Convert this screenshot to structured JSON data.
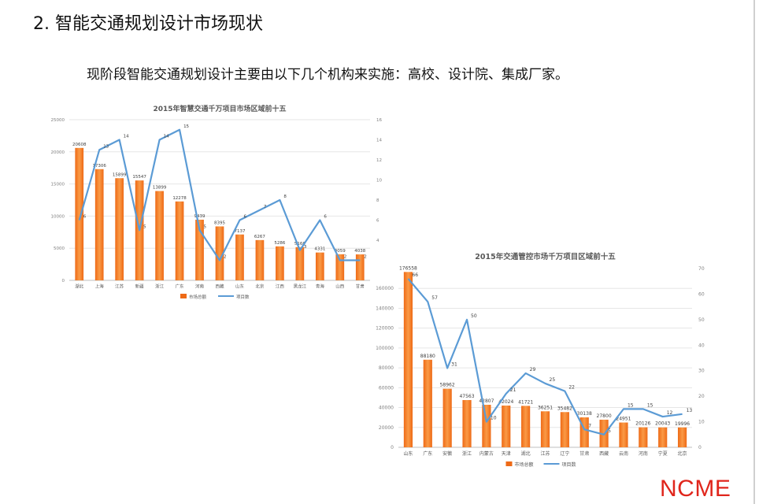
{
  "slide": {
    "title": "2. 智能交通规划设计市场现状",
    "subtitle": "现阶段智能交通规划设计主要由以下几个机构来实施：高校、设计院、集成厂家。",
    "brand": "NCME"
  },
  "colors": {
    "bar": "#ee6a16",
    "bar_light": "#fa9a46",
    "line": "#5b9bd5",
    "brand": "#e0261c"
  },
  "chart_data": [
    {
      "type": "bar",
      "title": "2015年智慧交通千万项目市场区域前十五",
      "categories": [
        "湖北",
        "上海",
        "江苏",
        "新疆",
        "浙江",
        "广东",
        "河南",
        "西藏",
        "山东",
        "北京",
        "江西",
        "黑龙江",
        "青海",
        "山西",
        "甘肃"
      ],
      "series": [
        {
          "name": "市场总额",
          "type": "bar",
          "axis": "left",
          "values": [
            20608,
            17306,
            15899,
            15547,
            13899,
            12278,
            9439,
            8395,
            7137,
            6267,
            5286,
            5166,
            4331,
            4059,
            4038
          ]
        },
        {
          "name": "项目数",
          "type": "line",
          "axis": "right",
          "values": [
            6,
            13,
            14,
            5,
            14,
            15,
            5,
            2,
            6,
            7,
            8,
            3,
            6,
            2,
            2
          ]
        }
      ],
      "ylim": [
        0,
        25000
      ],
      "yticks": [
        0,
        5000,
        10000,
        15000,
        20000,
        25000
      ],
      "y2lim": [
        0,
        16
      ],
      "y2ticks": [
        0,
        2,
        4,
        6,
        8,
        10,
        12,
        14,
        16
      ],
      "legend": "bottom"
    },
    {
      "type": "bar",
      "title": "2015年交通管控市场千万项目区域前十五",
      "categories": [
        "山东",
        "广东",
        "安徽",
        "浙江",
        "内蒙古",
        "天津",
        "湖北",
        "江苏",
        "辽宁",
        "甘肃",
        "西藏",
        "云南",
        "河南",
        "宁夏",
        "北京"
      ],
      "series": [
        {
          "name": "市场总额",
          "type": "bar",
          "axis": "left",
          "values": [
            176558,
            88180,
            58962,
            47563,
            42807,
            42024,
            41721,
            36251,
            35482,
            30138,
            27800,
            24951,
            20126,
            20043,
            19996
          ]
        },
        {
          "name": "项目数",
          "type": "line",
          "axis": "right",
          "values": [
            66,
            57,
            31,
            50,
            10,
            21,
            29,
            25,
            22,
            7,
            5,
            15,
            15,
            12,
            13
          ]
        }
      ],
      "ylim": [
        0,
        180000
      ],
      "yticks": [
        0,
        20000,
        40000,
        60000,
        80000,
        100000,
        120000,
        140000,
        160000
      ],
      "y2lim": [
        0,
        70
      ],
      "y2ticks": [
        0,
        10,
        20,
        30,
        40,
        50,
        60,
        70
      ],
      "legend": "bottom"
    }
  ]
}
